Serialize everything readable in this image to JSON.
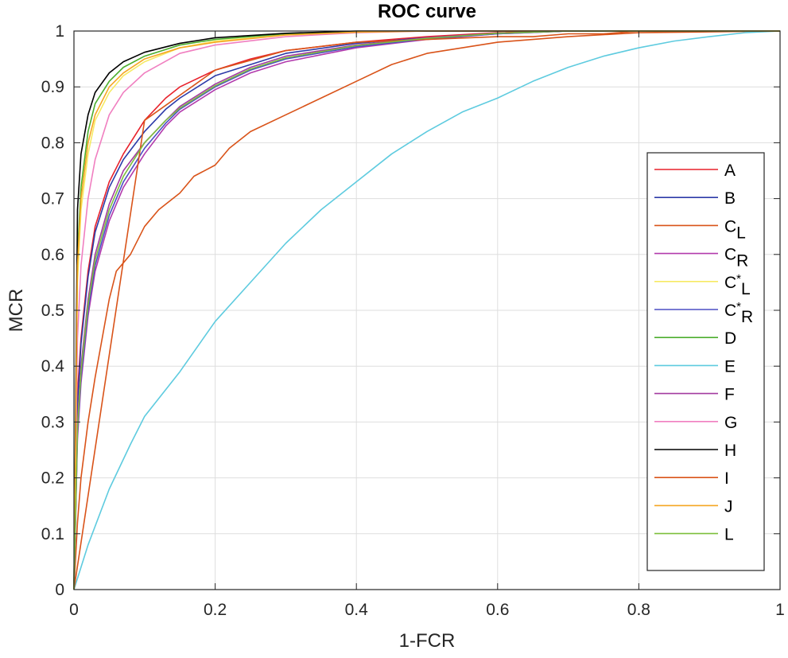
{
  "chart_data": {
    "type": "line",
    "title": "ROC curve",
    "xlabel": "1-FCR",
    "ylabel": "MCR",
    "xlim": [
      0,
      1
    ],
    "ylim": [
      0,
      1
    ],
    "grid": true,
    "legend_position": "right",
    "x_ticks": [
      0,
      0.2,
      0.4,
      0.6,
      0.8,
      1
    ],
    "x_tick_labels": [
      "0",
      "0.2",
      "0.4",
      "0.6",
      "0.8",
      "1"
    ],
    "y_ticks": [
      0,
      0.1,
      0.2,
      0.3,
      0.4,
      0.5,
      0.6,
      0.7,
      0.8,
      0.9,
      1
    ],
    "y_tick_labels": [
      "0",
      "0.1",
      "0.2",
      "0.3",
      "0.4",
      "0.5",
      "0.6",
      "0.7",
      "0.8",
      "0.9",
      "1"
    ],
    "series": [
      {
        "name": "A",
        "label": "A",
        "sub": "",
        "sup": "",
        "color": "#e8212b",
        "x": [
          0,
          0.005,
          0.01,
          0.02,
          0.03,
          0.05,
          0.07,
          0.1,
          0.13,
          0.15,
          0.2,
          0.25,
          0.3,
          0.4,
          0.5,
          0.6,
          0.7,
          0.8,
          1
        ],
        "y": [
          0,
          0.35,
          0.45,
          0.57,
          0.65,
          0.73,
          0.78,
          0.84,
          0.88,
          0.9,
          0.93,
          0.95,
          0.965,
          0.98,
          0.99,
          0.997,
          1,
          1,
          1
        ]
      },
      {
        "name": "B",
        "label": "B",
        "sub": "",
        "sup": "",
        "color": "#2c3aa8",
        "x": [
          0,
          0.005,
          0.01,
          0.02,
          0.03,
          0.05,
          0.07,
          0.1,
          0.13,
          0.15,
          0.2,
          0.25,
          0.3,
          0.4,
          0.5,
          0.6,
          0.7,
          0.8,
          1
        ],
        "y": [
          0,
          0.33,
          0.44,
          0.56,
          0.64,
          0.72,
          0.77,
          0.82,
          0.86,
          0.88,
          0.92,
          0.94,
          0.96,
          0.978,
          0.988,
          0.996,
          1,
          1,
          1
        ]
      },
      {
        "name": "CL",
        "label": "C",
        "sub": "L",
        "sup": "",
        "color": "#d95319",
        "x": [
          0,
          0.005,
          0.01,
          0.02,
          0.03,
          0.04,
          0.05,
          0.06,
          0.08,
          0.1,
          0.12,
          0.15,
          0.17,
          0.2,
          0.22,
          0.25,
          0.3,
          0.35,
          0.4,
          0.45,
          0.5,
          0.55,
          0.6,
          0.7,
          0.8,
          1
        ],
        "y": [
          0,
          0.12,
          0.2,
          0.3,
          0.38,
          0.45,
          0.52,
          0.57,
          0.6,
          0.65,
          0.68,
          0.71,
          0.74,
          0.76,
          0.79,
          0.82,
          0.85,
          0.88,
          0.91,
          0.94,
          0.96,
          0.97,
          0.98,
          0.99,
          0.997,
          1
        ]
      },
      {
        "name": "CR",
        "label": "C",
        "sub": "R",
        "sup": "",
        "color": "#b23aac",
        "x": [
          0,
          0.005,
          0.01,
          0.02,
          0.03,
          0.05,
          0.07,
          0.1,
          0.13,
          0.15,
          0.2,
          0.25,
          0.3,
          0.4,
          0.5,
          0.6,
          0.7,
          0.8,
          1
        ],
        "y": [
          0,
          0.27,
          0.37,
          0.49,
          0.57,
          0.66,
          0.72,
          0.78,
          0.83,
          0.855,
          0.895,
          0.925,
          0.945,
          0.97,
          0.985,
          0.995,
          1,
          1,
          1
        ]
      },
      {
        "name": "C*L",
        "label": "C",
        "sub": "L",
        "sup": "*",
        "color": "#f6ea63",
        "x": [
          0,
          0.005,
          0.01,
          0.02,
          0.03,
          0.05,
          0.07,
          0.1,
          0.15,
          0.2,
          0.3,
          0.4,
          0.5,
          1
        ],
        "y": [
          0,
          0.55,
          0.68,
          0.78,
          0.84,
          0.89,
          0.92,
          0.945,
          0.97,
          0.982,
          0.993,
          0.998,
          1,
          1
        ]
      },
      {
        "name": "C*R",
        "label": "C",
        "sub": "R",
        "sup": "*",
        "color": "#4b4fc4",
        "x": [
          0,
          0.005,
          0.01,
          0.02,
          0.03,
          0.05,
          0.07,
          0.1,
          0.13,
          0.15,
          0.2,
          0.25,
          0.3,
          0.4,
          0.5,
          0.6,
          0.7,
          0.8,
          1
        ],
        "y": [
          0,
          0.28,
          0.38,
          0.5,
          0.58,
          0.67,
          0.73,
          0.79,
          0.835,
          0.86,
          0.9,
          0.93,
          0.95,
          0.972,
          0.986,
          0.995,
          1,
          1,
          1
        ]
      },
      {
        "name": "D",
        "label": "D",
        "sub": "",
        "sup": "",
        "color": "#4cae2d",
        "x": [
          0,
          0.005,
          0.01,
          0.02,
          0.03,
          0.05,
          0.07,
          0.1,
          0.15,
          0.2,
          0.3,
          0.4,
          0.5,
          1
        ],
        "y": [
          0,
          0.6,
          0.72,
          0.82,
          0.87,
          0.91,
          0.935,
          0.955,
          0.975,
          0.985,
          0.995,
          0.999,
          1,
          1
        ]
      },
      {
        "name": "E",
        "label": "E",
        "sub": "",
        "sup": "",
        "color": "#5ecbdf",
        "x": [
          0,
          0.02,
          0.05,
          0.08,
          0.1,
          0.15,
          0.2,
          0.25,
          0.3,
          0.35,
          0.4,
          0.45,
          0.5,
          0.55,
          0.6,
          0.65,
          0.7,
          0.75,
          0.8,
          0.85,
          0.9,
          0.95,
          1
        ],
        "y": [
          0,
          0.08,
          0.18,
          0.26,
          0.31,
          0.39,
          0.48,
          0.55,
          0.62,
          0.68,
          0.73,
          0.78,
          0.82,
          0.855,
          0.88,
          0.91,
          0.935,
          0.955,
          0.97,
          0.982,
          0.99,
          0.997,
          1
        ]
      },
      {
        "name": "F",
        "label": "F",
        "sub": "",
        "sup": "",
        "color": "#a33aa0",
        "x": [
          0,
          0.005,
          0.01,
          0.02,
          0.03,
          0.05,
          0.07,
          0.1,
          0.13,
          0.15,
          0.2,
          0.25,
          0.3,
          0.4,
          0.5,
          0.6,
          0.7,
          0.8,
          1
        ],
        "y": [
          0,
          0.3,
          0.4,
          0.52,
          0.6,
          0.69,
          0.75,
          0.8,
          0.84,
          0.865,
          0.905,
          0.935,
          0.955,
          0.975,
          0.988,
          0.996,
          1,
          1,
          1
        ]
      },
      {
        "name": "G",
        "label": "G",
        "sub": "",
        "sup": "",
        "color": "#f07fc0",
        "x": [
          0,
          0.005,
          0.01,
          0.02,
          0.03,
          0.05,
          0.07,
          0.1,
          0.15,
          0.2,
          0.3,
          0.4,
          0.5,
          1
        ],
        "y": [
          0,
          0.45,
          0.58,
          0.7,
          0.77,
          0.85,
          0.89,
          0.925,
          0.96,
          0.975,
          0.99,
          0.997,
          1,
          1
        ]
      },
      {
        "name": "H",
        "label": "H",
        "sub": "",
        "sup": "",
        "color": "#000000",
        "x": [
          0,
          0.005,
          0.01,
          0.02,
          0.03,
          0.05,
          0.07,
          0.1,
          0.15,
          0.2,
          0.3,
          0.4,
          0.5,
          1
        ],
        "y": [
          0,
          0.68,
          0.78,
          0.85,
          0.89,
          0.925,
          0.945,
          0.962,
          0.978,
          0.988,
          0.996,
          1,
          1,
          1
        ]
      },
      {
        "name": "I",
        "label": "I",
        "sub": "",
        "sup": "",
        "color": "#d95319",
        "x": [
          0,
          0.1,
          0.2,
          0.3,
          0.4,
          0.5,
          0.6,
          0.65,
          0.7,
          0.75,
          0.8,
          0.9,
          1
        ],
        "y": [
          0,
          0.84,
          0.93,
          0.965,
          0.98,
          0.985,
          0.99,
          0.99,
          0.995,
          0.995,
          1,
          1,
          1
        ]
      },
      {
        "name": "J",
        "label": "J",
        "sub": "",
        "sup": "",
        "color": "#f5a623",
        "x": [
          0,
          0.005,
          0.01,
          0.02,
          0.03,
          0.05,
          0.07,
          0.1,
          0.15,
          0.2,
          0.3,
          0.4,
          0.5,
          1
        ],
        "y": [
          0,
          0.58,
          0.7,
          0.8,
          0.85,
          0.9,
          0.925,
          0.95,
          0.97,
          0.98,
          0.993,
          0.998,
          1,
          1
        ]
      },
      {
        "name": "L",
        "label": "L",
        "sub": "",
        "sup": "",
        "color": "#7dbf3c",
        "x": [
          0,
          0.005,
          0.01,
          0.02,
          0.03,
          0.05,
          0.07,
          0.1,
          0.13,
          0.15,
          0.2,
          0.25,
          0.3,
          0.4,
          0.5,
          0.6,
          0.7,
          0.8,
          1
        ],
        "y": [
          0,
          0.29,
          0.39,
          0.51,
          0.59,
          0.68,
          0.74,
          0.8,
          0.84,
          0.862,
          0.902,
          0.932,
          0.952,
          0.974,
          0.987,
          0.996,
          1,
          1,
          1
        ]
      }
    ]
  }
}
